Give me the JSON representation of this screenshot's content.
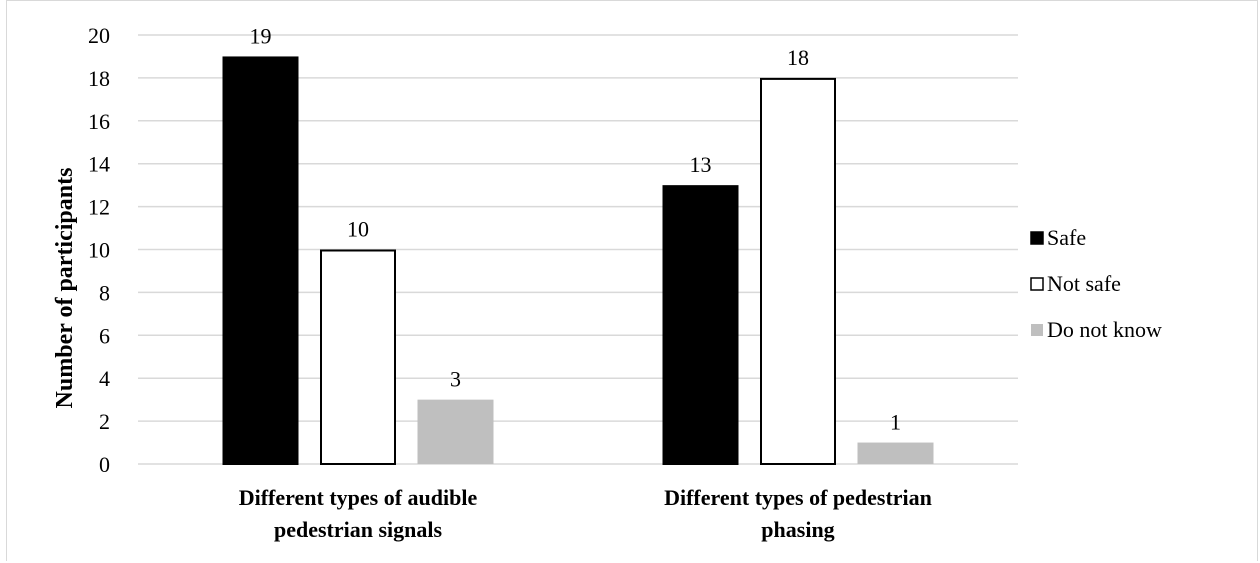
{
  "chart_data": {
    "type": "bar",
    "categories": [
      [
        "Different types of audible",
        "pedestrian signals"
      ],
      [
        "Different types of pedestrian",
        "phasing"
      ]
    ],
    "series": [
      {
        "name": "Safe",
        "values": [
          19,
          13
        ],
        "color": "#000000",
        "stroke": "#000000"
      },
      {
        "name": "Not safe",
        "values": [
          10,
          18
        ],
        "color": "#ffffff",
        "stroke": "#000000"
      },
      {
        "name": "Do not know",
        "values": [
          3,
          1
        ],
        "color": "#bfbfbf",
        "stroke": "#bfbfbf"
      }
    ],
    "ylabel": "Number of participants",
    "ylim": [
      0,
      20
    ],
    "yticks": [
      0,
      2,
      4,
      6,
      8,
      10,
      12,
      14,
      16,
      18,
      20
    ],
    "grid": true,
    "legend_position": "right",
    "gridline_color": "#d9d9d9"
  }
}
